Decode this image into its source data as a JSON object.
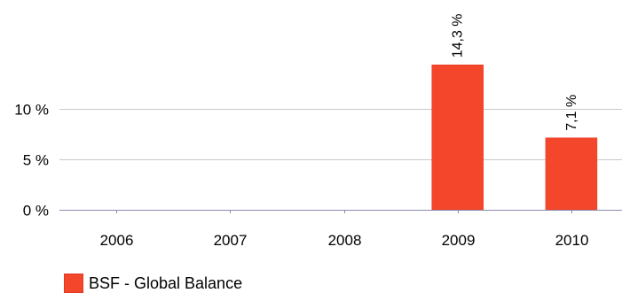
{
  "chart_data": {
    "type": "bar",
    "categories": [
      "2006",
      "2007",
      "2008",
      "2009",
      "2010"
    ],
    "series": [
      {
        "name": "BSF - Global Balance",
        "values": [
          null,
          null,
          null,
          14.3,
          7.1
        ],
        "data_labels": [
          "",
          "",
          "",
          "14,3 %",
          "7,1 %"
        ],
        "color": "#f4462a"
      }
    ],
    "yticks": [
      0,
      5,
      10
    ],
    "ytick_labels": [
      "0 %",
      "5 %",
      "10 %"
    ],
    "ylim": [
      0,
      19.5
    ],
    "title": "",
    "xlabel": "",
    "ylabel": "",
    "grid": true,
    "legend_position": "bottom-left"
  },
  "colors": {
    "bar": "#f4462a",
    "bar_edge": "#e03a20",
    "grid": "#c8c8c8",
    "axis": "#8a8ab0"
  }
}
